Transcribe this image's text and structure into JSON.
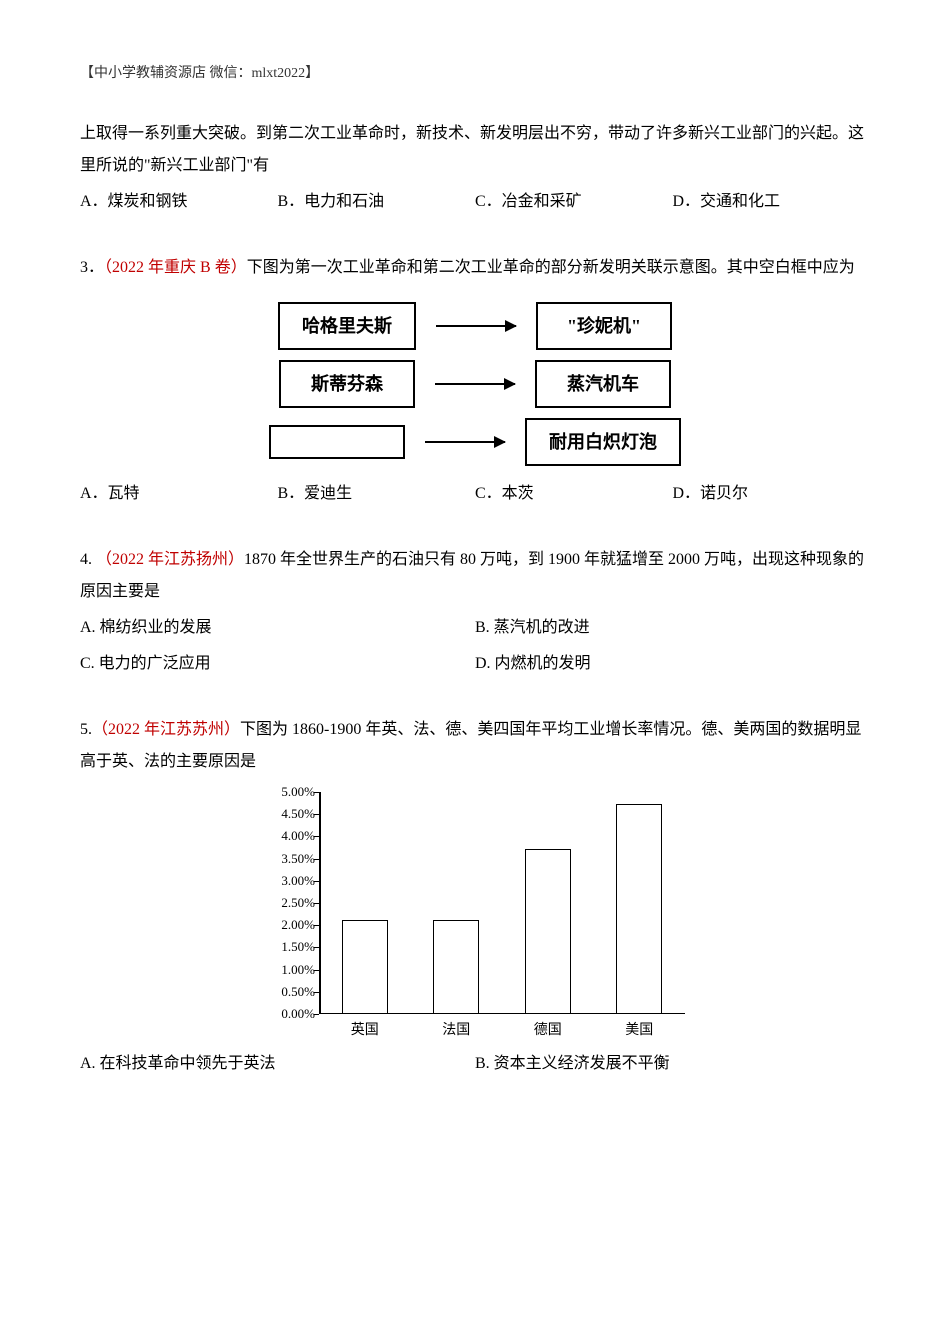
{
  "header": "【中小学教辅资源店 微信：mlxt2022】",
  "q2": {
    "continuation": "上取得一系列重大突破。到第二次工业革命时，新技术、新发明层出不穷，带动了许多新兴工业部门的兴起。这里所说的\"新兴工业部门\"有",
    "optA": "A．煤炭和钢铁",
    "optB": "B．电力和石油",
    "optC": "C．冶金和采矿",
    "optD": "D．交通和化工"
  },
  "q3": {
    "num": "3．",
    "source": "（2022 年重庆 B 卷）",
    "stem": "下图为第一次工业革命和第二次工业革命的部分新发明关联示意图。其中空白框中应为",
    "diagram": {
      "row1_left": "哈格里夫斯",
      "row1_right": "\"珍妮机\"",
      "row2_left": "斯蒂芬森",
      "row2_right": "蒸汽机车",
      "row3_right": "耐用白炽灯泡"
    },
    "optA": "A．瓦特",
    "optB": "B．爱迪生",
    "optC": "C．本茨",
    "optD": "D．诺贝尔"
  },
  "q4": {
    "num": "4.  ",
    "source": "（2022 年江苏扬州）",
    "stem": "1870 年全世界生产的石油只有 80 万吨，到 1900 年就猛增至 2000 万吨，出现这种现象的原因主要是",
    "optA": "A. 棉纺织业的发展",
    "optB": "B. 蒸汽机的改进",
    "optC": "C. 电力的广泛应用",
    "optD": "D. 内燃机的发明"
  },
  "q5": {
    "num": "5.",
    "source": "（2022 年江苏苏州）",
    "stem": "下图为 1860-1900 年英、法、德、美四国年平均工业增长率情况。德、美两国的数据明显高于英、法的主要原因是",
    "chart": {
      "type": "bar",
      "ylim": [
        0,
        5.0
      ],
      "ytick_step": 0.5,
      "yticks": [
        "0.00%",
        "0.50%",
        "1.00%",
        "1.50%",
        "2.00%",
        "2.50%",
        "3.00%",
        "3.50%",
        "4.00%",
        "4.50%",
        "5.00%"
      ],
      "categories": [
        "英国",
        "法国",
        "德国",
        "美国"
      ],
      "values": [
        2.1,
        2.1,
        3.7,
        4.7
      ],
      "bar_border_color": "#000000",
      "bar_fill_color": "#ffffff",
      "axis_color": "#000000",
      "label_fontsize": 13,
      "cat_fontsize": 14
    },
    "optA": "A. 在科技革命中领先于英法",
    "optB": "B. 资本主义经济发展不平衡"
  },
  "colors": {
    "text": "#000000",
    "source_red": "#c00000",
    "background": "#ffffff"
  }
}
